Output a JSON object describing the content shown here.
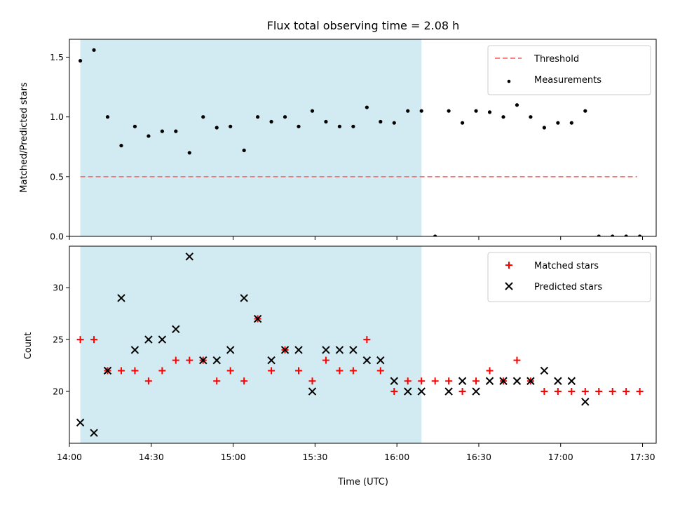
{
  "chart_data": {
    "title": "Flux total observing time = 2.08 h",
    "shaded_region": {
      "x_start": "14:04",
      "x_end": "16:09",
      "color": "#add8e6"
    },
    "x_axis": {
      "label": "Time (UTC)",
      "range": [
        "14:00",
        "17:35"
      ],
      "ticks": [
        "14:00",
        "14:30",
        "15:00",
        "15:30",
        "16:00",
        "16:30",
        "17:00",
        "17:30"
      ],
      "shared": true
    },
    "panels": [
      {
        "type": "scatter",
        "ylabel": "Matched/Predicted stars",
        "ylim": [
          0,
          1.65
        ],
        "yticks": [
          "0.0",
          "0.5",
          "1.0",
          "1.5"
        ],
        "legend_position": "upper-right",
        "series": [
          {
            "name": "Threshold",
            "kind": "line",
            "style": "dashed",
            "color": "#ff6e6e",
            "x": [
              "14:04",
              "17:28"
            ],
            "y": [
              0.5,
              0.5
            ]
          },
          {
            "name": "Measurements",
            "kind": "points",
            "marker": "dot",
            "color": "#000000",
            "x": [
              "14:04",
              "14:09",
              "14:14",
              "14:19",
              "14:24",
              "14:29",
              "14:34",
              "14:39",
              "14:44",
              "14:49",
              "14:54",
              "14:59",
              "15:04",
              "15:09",
              "15:14",
              "15:19",
              "15:24",
              "15:29",
              "15:34",
              "15:39",
              "15:44",
              "15:49",
              "15:54",
              "15:59",
              "16:04",
              "16:09",
              "16:14",
              "16:19",
              "16:24",
              "16:29",
              "16:34",
              "16:39",
              "16:44",
              "16:49",
              "16:54",
              "16:59",
              "17:04",
              "17:09",
              "17:14",
              "17:19",
              "17:24",
              "17:29"
            ],
            "y": [
              1.47,
              1.56,
              1.0,
              0.76,
              0.92,
              0.84,
              0.88,
              0.88,
              0.7,
              1.0,
              0.91,
              0.92,
              0.72,
              1.0,
              0.96,
              1.0,
              0.92,
              1.05,
              0.96,
              0.92,
              0.92,
              1.08,
              0.96,
              0.95,
              1.05,
              1.05,
              0.0,
              1.05,
              0.95,
              1.05,
              1.04,
              1.0,
              1.1,
              1.0,
              0.91,
              0.95,
              0.95,
              1.05,
              0.0,
              0.0,
              0.0,
              0.0
            ]
          }
        ]
      },
      {
        "type": "scatter",
        "ylabel": "Count",
        "ylim": [
          15,
          34
        ],
        "yticks": [
          "20",
          "25",
          "30"
        ],
        "legend_position": "upper-right",
        "series": [
          {
            "name": "Matched stars",
            "kind": "points",
            "marker": "plus",
            "color": "#ff0000",
            "x": [
              "14:04",
              "14:09",
              "14:14",
              "14:19",
              "14:24",
              "14:29",
              "14:34",
              "14:39",
              "14:44",
              "14:49",
              "14:54",
              "14:59",
              "15:04",
              "15:09",
              "15:14",
              "15:19",
              "15:24",
              "15:29",
              "15:34",
              "15:39",
              "15:44",
              "15:49",
              "15:54",
              "15:59",
              "16:04",
              "16:09",
              "16:14",
              "16:19",
              "16:24",
              "16:29",
              "16:34",
              "16:39",
              "16:44",
              "16:49",
              "16:54",
              "16:59",
              "17:04",
              "17:09",
              "17:14",
              "17:19",
              "17:24",
              "17:29"
            ],
            "y": [
              25,
              25,
              22,
              22,
              22,
              21,
              22,
              23,
              23,
              23,
              21,
              22,
              21,
              27,
              22,
              24,
              22,
              21,
              23,
              22,
              22,
              25,
              22,
              20,
              21,
              21,
              21,
              21,
              20,
              21,
              22,
              21,
              23,
              21,
              20,
              20,
              20,
              20,
              20,
              20,
              20,
              20
            ]
          },
          {
            "name": "Predicted stars",
            "kind": "points",
            "marker": "x",
            "color": "#000000",
            "x": [
              "14:04",
              "14:09",
              "14:14",
              "14:19",
              "14:24",
              "14:29",
              "14:34",
              "14:39",
              "14:44",
              "14:49",
              "14:54",
              "14:59",
              "15:04",
              "15:09",
              "15:14",
              "15:19",
              "15:24",
              "15:29",
              "15:34",
              "15:39",
              "15:44",
              "15:49",
              "15:54",
              "15:59",
              "16:04",
              "16:09",
              "16:19",
              "16:24",
              "16:29",
              "16:34",
              "16:39",
              "16:44",
              "16:49",
              "16:54",
              "16:59",
              "17:04",
              "17:09"
            ],
            "y": [
              17,
              16,
              22,
              29,
              24,
              25,
              25,
              26,
              33,
              23,
              23,
              24,
              29,
              27,
              23,
              24,
              24,
              20,
              24,
              24,
              24,
              23,
              23,
              21,
              20,
              20,
              20,
              21,
              20,
              21,
              21,
              21,
              21,
              22,
              21,
              21,
              19
            ]
          }
        ]
      }
    ]
  }
}
